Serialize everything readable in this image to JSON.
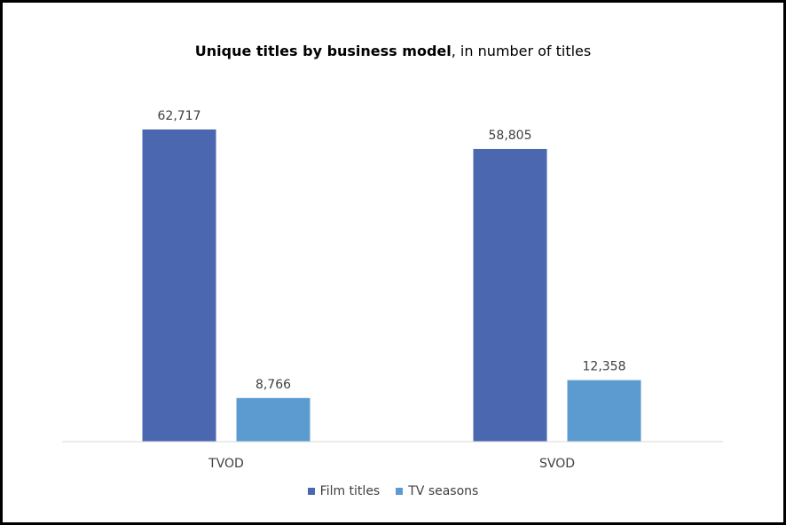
{
  "chart_data": {
    "type": "bar",
    "title_bold": "Unique titles by business model",
    "title_rest": ", in number of titles",
    "categories": [
      "TVOD",
      "SVOD"
    ],
    "series": [
      {
        "name": "Film titles",
        "values": [
          62717,
          58805
        ],
        "labels": [
          "62,717",
          "58,805"
        ],
        "color": "#4A67B0"
      },
      {
        "name": "TV seasons",
        "values": [
          8766,
          12358
        ],
        "labels": [
          "8,766",
          "12,358"
        ],
        "color": "#5B9BD0"
      }
    ],
    "ylim": [
      0,
      62717
    ],
    "grid": false,
    "legend_position": "bottom"
  }
}
